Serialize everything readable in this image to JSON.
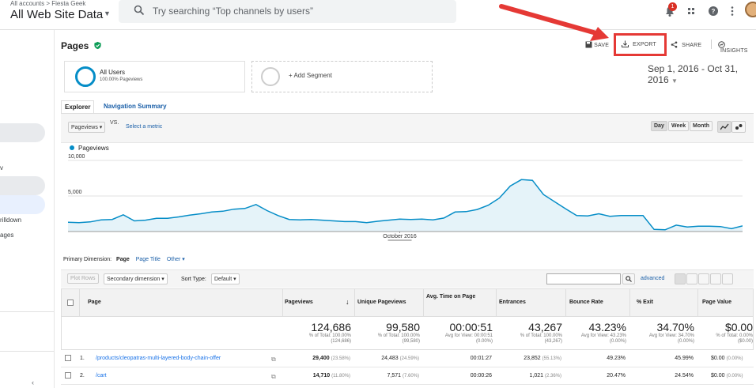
{
  "topbar": {
    "breadcrumb": "All accounts > Fiesta Geek",
    "property": "All Web Site Data",
    "search_placeholder": "Try searching “Top channels by users”",
    "notification_count": "1"
  },
  "sidebar": {
    "items": [
      "v",
      "rilldown",
      "ages"
    ]
  },
  "page": {
    "title": "Pages",
    "toolbar": {
      "save": "SAVE",
      "export": "EXPORT",
      "share": "SHARE",
      "insights": "INSIGHTS"
    },
    "segments": {
      "all_users": "All Users",
      "all_users_sub": "100.00% Pageviews",
      "add": "+ Add Segment"
    },
    "date_range": "Sep 1, 2016 - Oct 31, 2016",
    "tabs": {
      "explorer": "Explorer",
      "nav_summary": "Navigation Summary"
    },
    "metric_select": "Pageviews",
    "vs": "VS.",
    "select_metric": "Select a metric",
    "period_buttons": [
      "Day",
      "Week",
      "Month"
    ]
  },
  "chart_data": {
    "type": "area",
    "legend": "Pageviews",
    "yticks": [
      "10,000",
      "5,000"
    ],
    "xlabel_tick": "October 2016",
    "ylim": [
      0,
      10000
    ],
    "series": [
      {
        "name": "Pageviews",
        "color": "#058dc7",
        "values": [
          1300,
          1250,
          1350,
          1650,
          1700,
          2350,
          1500,
          1600,
          1850,
          1850,
          2050,
          2300,
          2500,
          2750,
          2850,
          3150,
          3250,
          3800,
          2950,
          2250,
          1700,
          1650,
          1700,
          1600,
          1500,
          1400,
          1400,
          1250,
          1450,
          1600,
          1750,
          1700,
          1750,
          1650,
          1900,
          2750,
          2800,
          3100,
          3700,
          4700,
          6400,
          7300,
          7200,
          5200,
          4200,
          3200,
          2250,
          2200,
          2500,
          2150,
          2250,
          2250,
          2250,
          300,
          250,
          900,
          650,
          750,
          750,
          700,
          400,
          800
        ]
      }
    ]
  },
  "table": {
    "primary_dimension_label": "Primary Dimension:",
    "dims": [
      "Page",
      "Page Title",
      "Other"
    ],
    "plot_rows": "Plot Rows",
    "secondary_dimension": "Secondary dimension",
    "sort_type_label": "Sort Type:",
    "sort_type": "Default",
    "advanced": "advanced",
    "headers": [
      "Page",
      "Pageviews",
      "Unique Pageviews",
      "Avg. Time on Page",
      "Entrances",
      "Bounce Rate",
      "% Exit",
      "Page Value"
    ],
    "totals": [
      {
        "big": "124,686",
        "l1": "% of Total: 100.00%",
        "l2": "(124,686)"
      },
      {
        "big": "99,580",
        "l1": "% of Total: 100.00%",
        "l2": "(99,580)"
      },
      {
        "big": "00:00:51",
        "l1": "Avg for View: 00:00:51",
        "l2": "(0.00%)"
      },
      {
        "big": "43,267",
        "l1": "% of Total: 100.00%",
        "l2": "(43,267)"
      },
      {
        "big": "43.23%",
        "l1": "Avg for View: 43.23%",
        "l2": "(0.00%)"
      },
      {
        "big": "34.70%",
        "l1": "Avg for View: 34.70%",
        "l2": "(0.00%)"
      },
      {
        "big": "$0.00",
        "l1": "% of Total: 0.00%",
        "l2": "($0.00)"
      }
    ],
    "rows": [
      {
        "num": "1.",
        "page": "/products/cleopatras-multi-layered-body-chain-offer",
        "pv": "29,400",
        "pv_pct": "(23.58%)",
        "upv": "24,483",
        "upv_pct": "(24.59%)",
        "time": "00:01:27",
        "ent": "23,852",
        "ent_pct": "(55.13%)",
        "bounce": "49.23%",
        "exit": "45.99%",
        "value": "$0.00",
        "value_pct": "(0.00%)"
      },
      {
        "num": "2.",
        "page": "/cart",
        "pv": "14,710",
        "pv_pct": "(11.80%)",
        "upv": "7,571",
        "upv_pct": "(7.60%)",
        "time": "00:00:26",
        "ent": "1,021",
        "ent_pct": "(2.36%)",
        "bounce": "20.47%",
        "exit": "24.54%",
        "value": "$0.00",
        "value_pct": "(0.00%)"
      }
    ]
  }
}
